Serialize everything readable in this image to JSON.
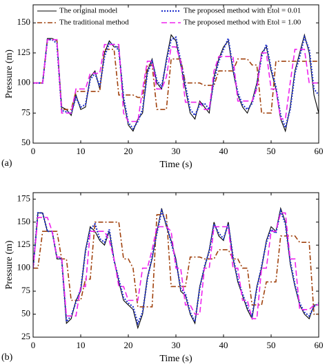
{
  "chart_data": [
    {
      "type": "line",
      "panel_label": "(a)",
      "x_label": "Time (s)",
      "y_label": "Pressure (m)",
      "xlim": [
        0,
        60
      ],
      "xticks": [
        0,
        10,
        20,
        30,
        40,
        50,
        60
      ],
      "ylim": [
        50,
        165
      ],
      "yticks": [
        50,
        75,
        100,
        125,
        150
      ],
      "legend": "top",
      "x": [
        0,
        1,
        2,
        3,
        4,
        5,
        6,
        7,
        8,
        9,
        10,
        11,
        12,
        13,
        14,
        15,
        16,
        17,
        18,
        19,
        20,
        21,
        22,
        23,
        24,
        25,
        26,
        27,
        28,
        29,
        30,
        31,
        32,
        33,
        34,
        35,
        36,
        37,
        38,
        39,
        40,
        41,
        42,
        43,
        44,
        45,
        46,
        47,
        48,
        49,
        50,
        51,
        52,
        53,
        54,
        55,
        56,
        57,
        58,
        59,
        60
      ],
      "series": [
        {
          "name": "The original model",
          "color": "#000000",
          "dash": "solid",
          "values": [
            100,
            100,
            100,
            137,
            137,
            135,
            80,
            78,
            73,
            90,
            78,
            80,
            105,
            110,
            95,
            125,
            135,
            130,
            130,
            85,
            65,
            60,
            70,
            75,
            110,
            120,
            100,
            95,
            120,
            140,
            135,
            115,
            95,
            75,
            70,
            85,
            80,
            75,
            105,
            120,
            130,
            135,
            110,
            90,
            80,
            75,
            85,
            100,
            125,
            130,
            110,
            95,
            70,
            60,
            80,
            110,
            125,
            140,
            125,
            90,
            75
          ]
        },
        {
          "name": "The traditional method",
          "color": "#a0410d",
          "dash": "dashdot",
          "values": [
            100,
            100,
            100,
            136,
            136,
            136,
            78,
            78,
            78,
            93,
            93,
            93,
            93,
            93,
            93,
            128,
            128,
            128,
            90,
            90,
            90,
            90,
            88,
            88,
            115,
            115,
            78,
            78,
            78,
            120,
            120,
            120,
            100,
            100,
            100,
            100,
            98,
            98,
            98,
            110,
            110,
            110,
            110,
            120,
            120,
            120,
            115,
            115,
            75,
            75,
            75,
            118,
            118,
            118,
            118,
            118,
            118,
            118,
            118,
            118,
            118
          ]
        },
        {
          "name": "The proposed method with Etol = 0.01",
          "color": "#2233cc",
          "dash": "dotted",
          "values": [
            100,
            100,
            100,
            136,
            136,
            133,
            77,
            76,
            75,
            88,
            80,
            82,
            103,
            108,
            97,
            122,
            133,
            132,
            127,
            88,
            67,
            62,
            68,
            78,
            108,
            118,
            102,
            97,
            118,
            136,
            138,
            118,
            98,
            78,
            73,
            82,
            83,
            78,
            102,
            118,
            128,
            137,
            112,
            92,
            82,
            78,
            83,
            98,
            122,
            132,
            112,
            97,
            73,
            63,
            78,
            108,
            122,
            138,
            128,
            95,
            90
          ]
        },
        {
          "name": "The proposed method with Etol = 1.00",
          "color": "#ee22ee",
          "dash": "dashed",
          "values": [
            100,
            100,
            100,
            136,
            136,
            136,
            75,
            75,
            75,
            95,
            95,
            95,
            108,
            108,
            108,
            132,
            132,
            132,
            132,
            75,
            68,
            68,
            68,
            95,
            118,
            118,
            95,
            95,
            105,
            130,
            130,
            118,
            84,
            84,
            84,
            84,
            78,
            78,
            110,
            122,
            122,
            122,
            122,
            85,
            85,
            85,
            85,
            95,
            125,
            125,
            95,
            95,
            70,
            70,
            100,
            128,
            128,
            128,
            100,
            100,
            100
          ]
        }
      ]
    },
    {
      "type": "line",
      "panel_label": "(b)",
      "x_label": "Time (s)",
      "y_label": "Pressure (m)",
      "xlim": [
        0,
        60
      ],
      "xticks": [
        0,
        10,
        20,
        30,
        40,
        50,
        60
      ],
      "ylim": [
        25,
        182
      ],
      "yticks": [
        25,
        50,
        75,
        100,
        125,
        150,
        175
      ],
      "x": [
        0,
        1,
        2,
        3,
        4,
        5,
        6,
        7,
        8,
        9,
        10,
        11,
        12,
        13,
        14,
        15,
        16,
        17,
        18,
        19,
        20,
        21,
        22,
        23,
        24,
        25,
        26,
        27,
        28,
        29,
        30,
        31,
        32,
        33,
        34,
        35,
        36,
        37,
        38,
        39,
        40,
        41,
        42,
        43,
        44,
        45,
        46,
        47,
        48,
        49,
        50,
        51,
        52,
        53,
        54,
        55,
        56,
        57,
        58,
        59,
        60
      ],
      "series": [
        {
          "color": "#000000",
          "dash": "solid",
          "values": [
            100,
            160,
            160,
            140,
            140,
            110,
            110,
            40,
            45,
            65,
            75,
            120,
            145,
            140,
            130,
            125,
            140,
            110,
            85,
            65,
            60,
            55,
            35,
            50,
            90,
            110,
            140,
            165,
            145,
            130,
            110,
            75,
            70,
            50,
            40,
            80,
            100,
            120,
            150,
            135,
            130,
            150,
            110,
            85,
            70,
            55,
            45,
            80,
            100,
            130,
            145,
            140,
            165,
            150,
            105,
            80,
            60,
            50,
            45,
            60,
            60
          ]
        },
        {
          "color": "#a0410d",
          "dash": "dashdot",
          "values": [
            100,
            100,
            140,
            140,
            140,
            140,
            110,
            110,
            65,
            65,
            65,
            88,
            88,
            150,
            150,
            150,
            150,
            150,
            150,
            110,
            110,
            100,
            58,
            58,
            58,
            58,
            158,
            158,
            158,
            80,
            80,
            80,
            80,
            112,
            112,
            112,
            110,
            110,
            110,
            120,
            120,
            120,
            110,
            110,
            100,
            100,
            60,
            60,
            60,
            85,
            85,
            85,
            135,
            135,
            135,
            135,
            128,
            128,
            128,
            50,
            50
          ]
        },
        {
          "color": "#2233cc",
          "dash": "dotted",
          "values": [
            100,
            160,
            160,
            140,
            140,
            112,
            110,
            42,
            48,
            63,
            77,
            118,
            142,
            148,
            132,
            128,
            142,
            108,
            88,
            68,
            62,
            58,
            40,
            52,
            88,
            112,
            138,
            162,
            148,
            128,
            108,
            78,
            72,
            52,
            42,
            78,
            102,
            118,
            148,
            138,
            132,
            148,
            112,
            88,
            72,
            58,
            48,
            78,
            102,
            128,
            142,
            138,
            162,
            148,
            108,
            82,
            62,
            52,
            48,
            58,
            62
          ]
        },
        {
          "color": "#ee22ee",
          "dash": "dashed",
          "values": [
            100,
            155,
            155,
            155,
            140,
            112,
            112,
            48,
            48,
            48,
            80,
            80,
            140,
            140,
            140,
            140,
            130,
            110,
            80,
            80,
            65,
            65,
            65,
            100,
            100,
            120,
            145,
            145,
            145,
            140,
            100,
            100,
            60,
            60,
            50,
            50,
            100,
            100,
            145,
            145,
            145,
            145,
            100,
            100,
            65,
            65,
            45,
            45,
            100,
            100,
            140,
            140,
            160,
            160,
            110,
            110,
            55,
            55,
            55,
            60,
            60
          ]
        }
      ]
    }
  ]
}
